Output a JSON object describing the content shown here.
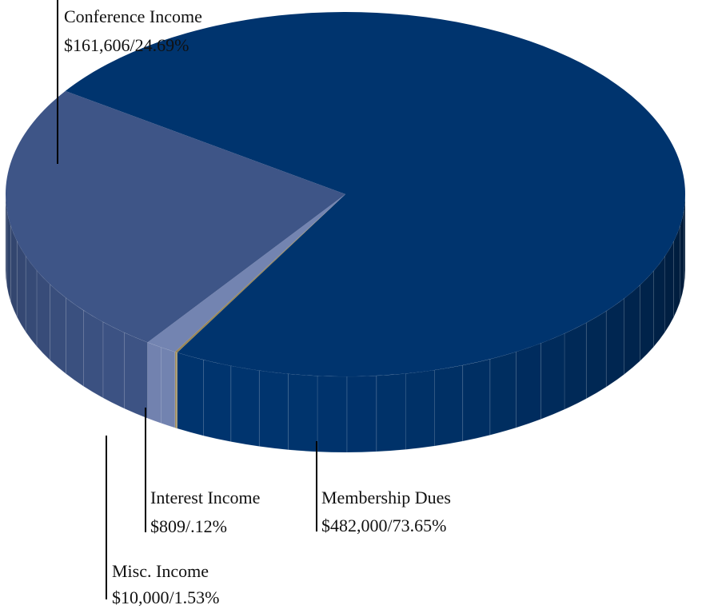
{
  "chart_data": {
    "type": "pie",
    "style": "3d",
    "title": "",
    "slices": [
      {
        "label": "Membership Dues",
        "value": 482000,
        "value_text": "$482,000/73.65%",
        "color": "#00346e"
      },
      {
        "label": "Interest Income",
        "value": 809,
        "value_text": "$809/.12%",
        "color": "#9a8757"
      },
      {
        "label": "Misc. Income",
        "value": 10000,
        "value_text": "$10,000/1.53%",
        "color": "#7384b1"
      },
      {
        "label": "Conference Income",
        "value": 161606,
        "value_text": "$161,606/24.69%",
        "color": "#3e5587"
      }
    ],
    "legend": "none"
  }
}
